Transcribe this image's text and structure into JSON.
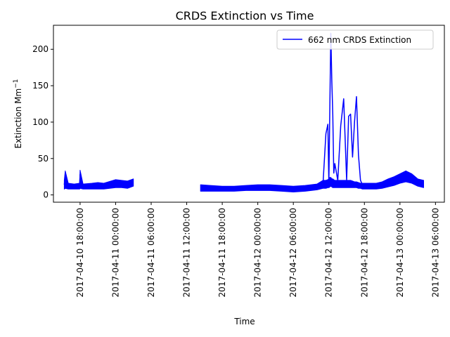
{
  "chart_data": {
    "type": "line",
    "title": "CRDS Extinction vs Time",
    "xlabel": "Time",
    "ylabel": "Extinction Mm",
    "ylabel_superscript": "−1",
    "ylim": [
      -10,
      233
    ],
    "xlim": [
      "2017-04-10 13:30:00",
      "2017-04-13 07:30:00"
    ],
    "y_ticks": [
      0,
      50,
      100,
      150,
      200
    ],
    "x_ticks": [
      "2017-04-10 18:00:00",
      "2017-04-11 00:00:00",
      "2017-04-11 06:00:00",
      "2017-04-11 12:00:00",
      "2017-04-11 18:00:00",
      "2017-04-12 00:00:00",
      "2017-04-12 06:00:00",
      "2017-04-12 12:00:00",
      "2017-04-12 18:00:00",
      "2017-04-13 00:00:00",
      "2017-04-13 06:00:00"
    ],
    "grid": false,
    "legend_position": "top-right",
    "series": [
      {
        "name": "662 nm CRDS Extinction",
        "color": "#0000ff",
        "segments": [
          {
            "x": [
              "2017-04-10 15:20",
              "2017-04-10 15:30",
              "2017-04-10 16:00",
              "2017-04-10 17:00",
              "2017-04-10 17:55",
              "2017-04-10 18:00",
              "2017-04-10 18:30",
              "2017-04-10 20:00",
              "2017-04-10 21:00",
              "2017-04-10 22:00",
              "2017-04-11 00:00",
              "2017-04-11 01:00",
              "2017-04-11 02:00",
              "2017-04-11 03:00"
            ],
            "y": [
              14,
              26,
              11,
              11,
              12,
              28,
              12,
              11,
              12,
              12,
              15,
              15,
              14,
              17
            ],
            "band_low": [
              8,
              9,
              8,
              8,
              8,
              9,
              8,
              8,
              8,
              8,
              10,
              10,
              9,
              12
            ],
            "band_high": [
              20,
              33,
              16,
              15,
              16,
              34,
              15,
              16,
              17,
              16,
              21,
              20,
              19,
              22
            ]
          },
          {
            "x": [
              "2017-04-11 14:20",
              "2017-04-11 16:00",
              "2017-04-11 18:00",
              "2017-04-11 20:00",
              "2017-04-11 22:00",
              "2017-04-12 00:00",
              "2017-04-12 02:00",
              "2017-04-12 04:00",
              "2017-04-12 06:00",
              "2017-04-12 08:00",
              "2017-04-12 10:00",
              "2017-04-12 11:00",
              "2017-04-12 11:30",
              "2017-04-12 11:50",
              "2017-04-12 12:00",
              "2017-04-12 12:10",
              "2017-04-12 12:20",
              "2017-04-12 12:30",
              "2017-04-12 12:40",
              "2017-04-12 12:50",
              "2017-04-12 13:00",
              "2017-04-12 13:30",
              "2017-04-12 14:00",
              "2017-04-12 14:30",
              "2017-04-12 15:00",
              "2017-04-12 15:20",
              "2017-04-12 15:40",
              "2017-04-12 16:00",
              "2017-04-12 16:20",
              "2017-04-12 16:40",
              "2017-04-12 17:00",
              "2017-04-12 17:20",
              "2017-04-12 17:40",
              "2017-04-12 18:00",
              "2017-04-12 19:00",
              "2017-04-12 20:00",
              "2017-04-12 21:00",
              "2017-04-12 22:00",
              "2017-04-12 23:00",
              "2017-04-13 00:00",
              "2017-04-13 01:00",
              "2017-04-13 02:00",
              "2017-04-13 03:00",
              "2017-04-13 04:00"
            ],
            "y": [
              10,
              9,
              9,
              9,
              10,
              10,
              11,
              9,
              8,
              9,
              11,
              14,
              84,
              97,
              15,
              120,
              222,
              157,
              110,
              30,
              43,
              20,
              95,
              132,
              20,
              108,
              111,
              52,
              100,
              135,
              55,
              20,
              14,
              14,
              13,
              12,
              14,
              16,
              18,
              22,
              26,
              22,
              17,
              15
            ],
            "band_low": [
              5,
              5,
              5,
              5,
              6,
              6,
              6,
              5,
              4,
              5,
              7,
              9,
              9,
              10,
              10,
              11,
              12,
              11,
              10,
              10,
              10,
              10,
              10,
              10,
              10,
              10,
              10,
              10,
              10,
              10,
              9,
              9,
              8,
              8,
              8,
              8,
              9,
              11,
              13,
              16,
              18,
              16,
              12,
              10
            ],
            "band_high": [
              14,
              13,
              12,
              12,
              13,
              14,
              14,
              13,
              12,
              13,
              15,
              20,
              20,
              21,
              22,
              24,
              24,
              22,
              22,
              21,
              20,
              20,
              20,
              20,
              20,
              20,
              20,
              19,
              18,
              18,
              17,
              16,
              16,
              16,
              16,
              16,
              18,
              22,
              25,
              29,
              33,
              29,
              22,
              20
            ]
          }
        ]
      }
    ]
  }
}
